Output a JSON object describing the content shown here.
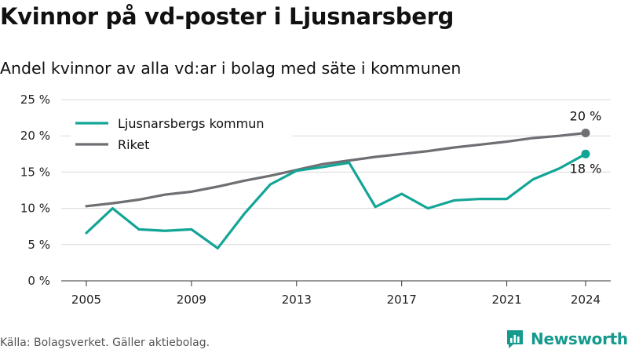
{
  "header": {
    "title": "Kvinnor på vd-poster i Ljusnarsberg",
    "subtitle": "Andel kvinnor av alla vd:ar i bolag med säte i kommunen"
  },
  "footer": {
    "source": "Källa: Bolagsverket. Gäller aktiebolag.",
    "brand": "Newsworthy"
  },
  "colors": {
    "kommun": "#13a596",
    "riket": "#6e6e73",
    "grid": "#d9d9d9"
  },
  "chart_data": {
    "type": "line",
    "x": [
      2005,
      2006,
      2007,
      2008,
      2009,
      2010,
      2011,
      2012,
      2013,
      2014,
      2015,
      2016,
      2017,
      2018,
      2019,
      2020,
      2021,
      2022,
      2023,
      2024
    ],
    "series": [
      {
        "name": "Ljusnarsbergs kommun",
        "color": "#13a596",
        "values": [
          6.6,
          10.0,
          7.1,
          6.9,
          7.1,
          4.5,
          9.2,
          13.3,
          15.2,
          15.7,
          16.3,
          10.2,
          12.0,
          10.0,
          11.1,
          11.3,
          11.3,
          14.0,
          15.5,
          17.5
        ],
        "end_label": "18 %"
      },
      {
        "name": "Riket",
        "color": "#6e6e73",
        "values": [
          10.3,
          10.7,
          11.2,
          11.9,
          12.3,
          13.0,
          13.8,
          14.5,
          15.3,
          16.1,
          16.6,
          17.1,
          17.5,
          17.9,
          18.4,
          18.8,
          19.2,
          19.7,
          20.0,
          20.4
        ],
        "end_label": "20 %"
      }
    ],
    "x_ticks": [
      2005,
      2009,
      2013,
      2017,
      2021,
      2024
    ],
    "y_ticks": [
      0,
      5,
      10,
      15,
      20,
      25
    ],
    "y_tick_labels": [
      "0 %",
      "5 %",
      "10 %",
      "15 %",
      "20 %",
      "25 %"
    ],
    "ylim": [
      0,
      25
    ],
    "xlim": [
      2005,
      2024
    ],
    "legend": "top-left",
    "grid": true
  }
}
